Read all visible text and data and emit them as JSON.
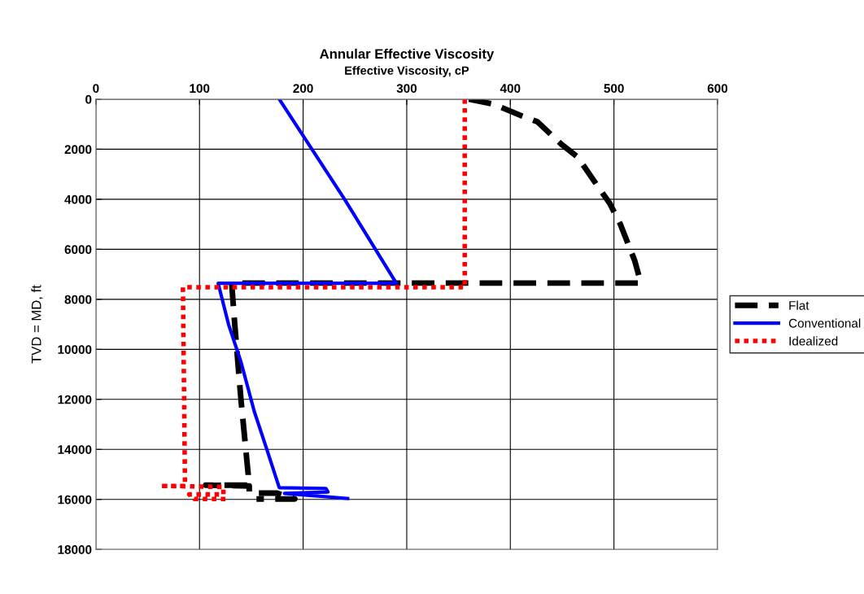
{
  "chart_data": {
    "type": "line",
    "title": "Annular Effective Viscosity",
    "xlabel": "Effective Viscosity, cP",
    "ylabel": "TVD = MD, ft",
    "xlim": [
      0,
      600
    ],
    "xticks": [
      0,
      100,
      200,
      300,
      400,
      500,
      600
    ],
    "ylim": [
      18000,
      0
    ],
    "yticks": [
      0,
      2000,
      4000,
      6000,
      8000,
      10000,
      12000,
      14000,
      16000,
      18000
    ],
    "grid": true,
    "legend": "right",
    "marker": "none",
    "series": [
      {
        "name": "Flat",
        "color": "#000000",
        "line_style": "dashed",
        "x": [
          360,
          384,
          410,
          426,
          449,
          465,
          486,
          496,
          506,
          520,
          526,
          131,
          134,
          140,
          147,
          147,
          106,
          148,
          148,
          175,
          192,
          155
        ],
        "values": [
          0,
          200,
          650,
          900,
          1790,
          2310,
          3580,
          4170,
          4980,
          6450,
          7350,
          7350,
          9000,
          12000,
          15000,
          15430,
          15430,
          15460,
          15750,
          15750,
          15980,
          15980
        ]
      },
      {
        "name": "Conventional",
        "color": "#0000ff",
        "line_style": "solid",
        "x": [
          177,
          240,
          290,
          118,
          128,
          140,
          153,
          165,
          177,
          222,
          224,
          182,
          243
        ],
        "values": [
          0,
          4000,
          7360,
          7360,
          9000,
          10500,
          12500,
          14000,
          15530,
          15560,
          15700,
          15760,
          15960
        ]
      },
      {
        "name": "Idealized",
        "color": "#ff0000",
        "line_style": "dotted",
        "x": [
          356,
          356,
          84,
          86,
          62,
          123,
          123,
          90,
          95,
          127
        ],
        "values": [
          0,
          7520,
          7520,
          15460,
          15460,
          15500,
          15800,
          15800,
          15980,
          15980
        ]
      }
    ]
  }
}
